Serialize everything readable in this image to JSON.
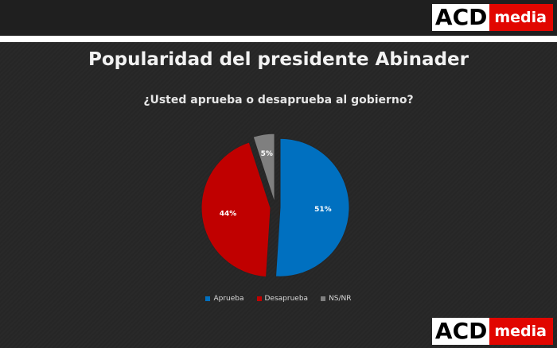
{
  "logo": {
    "acd": "ACD",
    "media": "media"
  },
  "title": "Popularidad del presidente Abinader",
  "subtitle": "¿Usted aprueba o desaprueba al gobierno?",
  "chart_data": {
    "type": "pie",
    "title": "Popularidad del presidente Abinader",
    "subtitle": "¿Usted aprueba o desaprueba al gobierno?",
    "categories": [
      "Aprueba",
      "Desaprueba",
      "NS/NR"
    ],
    "values": [
      51,
      44,
      5
    ],
    "labels": [
      "51%",
      "44%",
      "5%"
    ],
    "colors": [
      "#0070c0",
      "#c00000",
      "#7f7f7f"
    ],
    "legend_position": "bottom"
  }
}
